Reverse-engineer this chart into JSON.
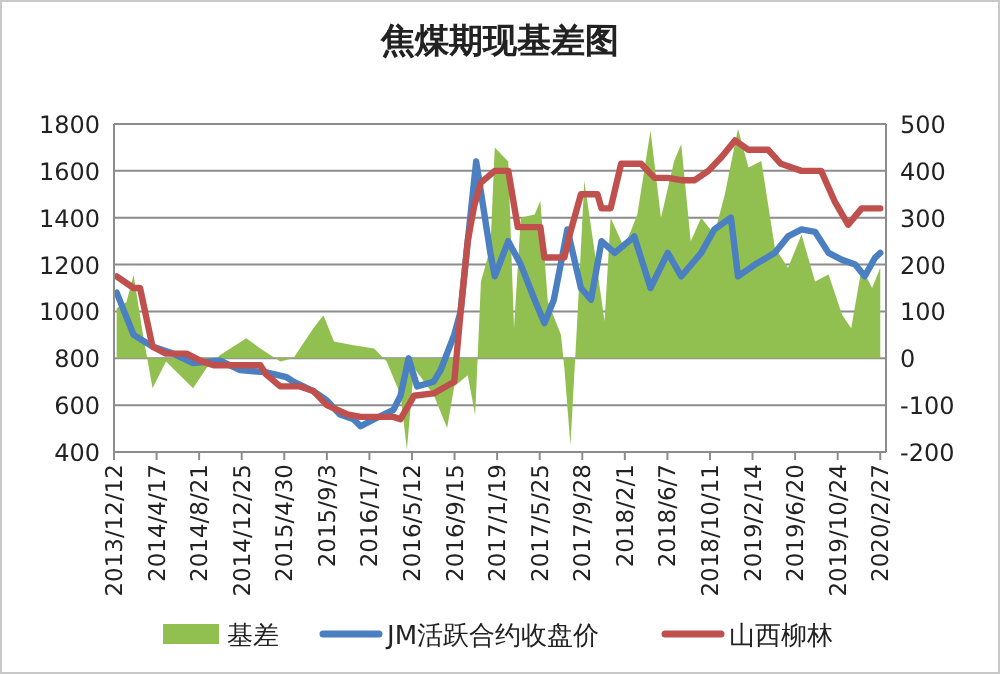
{
  "chart_data": {
    "type": "line",
    "title": "焦煤期现基差图",
    "legend": "bottom",
    "grid": "y",
    "xlim": [
      "2013-12-12",
      "2020-03-15"
    ],
    "xticks": [
      {
        "value": "2013-12-12",
        "label": "2013/12/12"
      },
      {
        "value": "2014-04-17",
        "label": "2014/4/17"
      },
      {
        "value": "2014-08-21",
        "label": "2014/8/21"
      },
      {
        "value": "2014-12-25",
        "label": "2014/12/25"
      },
      {
        "value": "2015-04-30",
        "label": "2015/4/30"
      },
      {
        "value": "2015-09-03",
        "label": "2015/9/3"
      },
      {
        "value": "2016-01-07",
        "label": "2016/1/7"
      },
      {
        "value": "2016-05-12",
        "label": "2016/5/12"
      },
      {
        "value": "2016-09-15",
        "label": "2016/9/15"
      },
      {
        "value": "2017-01-19",
        "label": "2017/1/19"
      },
      {
        "value": "2017-05-25",
        "label": "2017/5/25"
      },
      {
        "value": "2017-09-28",
        "label": "2017/9/28"
      },
      {
        "value": "2018-02-01",
        "label": "2018/2/1"
      },
      {
        "value": "2018-06-07",
        "label": "2018/6/7"
      },
      {
        "value": "2018-10-11",
        "label": "2018/10/11"
      },
      {
        "value": "2019-02-14",
        "label": "2019/2/14"
      },
      {
        "value": "2019-06-20",
        "label": "2019/6/20"
      },
      {
        "value": "2019-10-24",
        "label": "2019/10/24"
      },
      {
        "value": "2020-02-27",
        "label": "2020/2/27"
      }
    ],
    "ylim": [
      400,
      1800
    ],
    "yticks": [
      400,
      600,
      800,
      1000,
      1200,
      1400,
      1600,
      1800
    ],
    "y2lim": [
      -200,
      500
    ],
    "y2ticks": [
      -200,
      -100,
      0,
      100,
      200,
      300,
      400,
      500
    ],
    "series": [
      {
        "name": "基差",
        "type": "area",
        "axis": "y2",
        "color": "#92c050",
        "x": [
          "2013-12-20",
          "2014-01-18",
          "2014-02-08",
          "2014-03-08",
          "2014-04-05",
          "2014-05-15",
          "2014-08-03",
          "2014-09-12",
          "2014-10-22",
          "2015-01-08",
          "2015-02-18",
          "2015-04-18",
          "2015-05-27",
          "2015-07-25",
          "2015-08-24",
          "2015-09-24",
          "2015-11-21",
          "2016-01-21",
          "2016-02-27",
          "2016-04-08",
          "2016-04-27",
          "2016-05-18",
          "2016-07-15",
          "2016-08-24",
          "2016-09-14",
          "2016-10-24",
          "2016-11-15",
          "2016-12-02",
          "2016-12-30",
          "2017-01-12",
          "2017-02-21",
          "2017-03-10",
          "2017-03-30",
          "2017-05-10",
          "2017-05-27",
          "2017-06-18",
          "2017-07-27",
          "2017-08-06",
          "2017-08-24",
          "2017-09-14",
          "2017-10-04",
          "2017-11-02",
          "2017-12-03",
          "2017-12-21",
          "2018-01-30",
          "2018-03-10",
          "2018-04-18",
          "2018-05-19",
          "2018-06-27",
          "2018-07-18",
          "2018-08-15",
          "2018-09-15",
          "2018-10-24",
          "2018-11-24",
          "2019-01-02",
          "2019-02-02",
          "2019-03-12",
          "2019-04-21",
          "2019-05-30",
          "2019-07-09",
          "2019-08-18",
          "2019-09-27",
          "2019-11-06",
          "2019-12-03",
          "2020-01-03",
          "2020-02-03",
          "2020-02-27"
        ],
        "values": [
          107,
          120,
          178,
          50,
          -64,
          -7,
          -64,
          -21,
          7,
          43,
          21,
          -7,
          0,
          64,
          92,
          36,
          28,
          21,
          -7,
          -78,
          -195,
          -21,
          -78,
          -149,
          -60,
          -36,
          -121,
          164,
          235,
          450,
          420,
          64,
          300,
          307,
          336,
          121,
          50,
          -21,
          -186,
          93,
          379,
          236,
          79,
          300,
          236,
          307,
          486,
          300,
          421,
          457,
          250,
          300,
          264,
          350,
          490,
          407,
          421,
          236,
          193,
          264,
          164,
          179,
          93,
          64,
          193,
          150,
          193
        ]
      },
      {
        "name": "JM活跃合约收盘价",
        "type": "line",
        "axis": "y",
        "color": "#4a7fc1",
        "x": [
          "2013-12-20",
          "2014-02-08",
          "2014-04-05",
          "2014-06-05",
          "2014-08-03",
          "2014-10-22",
          "2014-12-20",
          "2015-03-08",
          "2015-05-06",
          "2015-05-27",
          "2015-07-25",
          "2015-09-03",
          "2015-10-12",
          "2015-11-21",
          "2015-12-12",
          "2016-01-21",
          "2016-03-18",
          "2016-04-08",
          "2016-05-02",
          "2016-05-27",
          "2016-07-15",
          "2016-08-05",
          "2016-09-14",
          "2016-10-03",
          "2016-10-24",
          "2016-11-18",
          "2016-12-30",
          "2017-01-12",
          "2017-02-21",
          "2017-03-30",
          "2017-05-10",
          "2017-06-08",
          "2017-07-06",
          "2017-08-15",
          "2017-09-24",
          "2017-10-24",
          "2017-11-24",
          "2018-01-02",
          "2018-03-01",
          "2018-04-18",
          "2018-06-08",
          "2018-07-18",
          "2018-09-15",
          "2018-10-24",
          "2018-12-12",
          "2019-01-02",
          "2019-02-21",
          "2019-04-21",
          "2019-05-30",
          "2019-07-09",
          "2019-08-18",
          "2019-09-27",
          "2019-11-06",
          "2019-12-15",
          "2020-01-12",
          "2020-02-12",
          "2020-02-27"
        ],
        "values": [
          1080,
          900,
          850,
          820,
          780,
          790,
          750,
          740,
          720,
          700,
          660,
          620,
          560,
          540,
          510,
          540,
          580,
          640,
          800,
          680,
          700,
          750,
          900,
          1000,
          1300,
          1640,
          1250,
          1150,
          1300,
          1200,
          1050,
          950,
          1050,
          1350,
          1100,
          1050,
          1300,
          1250,
          1320,
          1100,
          1250,
          1150,
          1250,
          1350,
          1400,
          1150,
          1200,
          1250,
          1320,
          1350,
          1340,
          1250,
          1220,
          1200,
          1150,
          1230,
          1250
        ]
      },
      {
        "name": "山西柳林",
        "type": "line",
        "axis": "y",
        "color": "#c0504d",
        "x": [
          "2013-12-20",
          "2014-02-08",
          "2014-02-27",
          "2014-04-05",
          "2014-05-15",
          "2014-07-15",
          "2014-08-24",
          "2014-10-03",
          "2015-02-18",
          "2015-03-08",
          "2015-04-18",
          "2015-06-15",
          "2015-07-25",
          "2015-09-03",
          "2015-11-03",
          "2015-12-12",
          "2016-03-18",
          "2016-04-08",
          "2016-05-18",
          "2016-07-15",
          "2016-09-14",
          "2016-10-03",
          "2016-10-24",
          "2016-11-12",
          "2016-12-02",
          "2017-01-12",
          "2017-02-21",
          "2017-03-21",
          "2017-05-27",
          "2017-06-08",
          "2017-08-06",
          "2017-08-24",
          "2017-09-24",
          "2017-11-12",
          "2017-11-24",
          "2017-12-21",
          "2018-01-21",
          "2018-03-21",
          "2018-04-30",
          "2018-06-08",
          "2018-07-18",
          "2018-08-27",
          "2018-10-06",
          "2018-11-15",
          "2018-12-24",
          "2019-02-02",
          "2019-04-01",
          "2019-05-09",
          "2019-07-09",
          "2019-09-05",
          "2019-10-15",
          "2019-11-24",
          "2020-01-03",
          "2020-02-27"
        ],
        "values": [
          1150,
          1100,
          1100,
          850,
          820,
          820,
          790,
          770,
          770,
          730,
          680,
          680,
          660,
          600,
          560,
          550,
          550,
          540,
          640,
          650,
          700,
          1000,
          1300,
          1450,
          1550,
          1600,
          1600,
          1360,
          1360,
          1230,
          1230,
          1340,
          1500,
          1500,
          1440,
          1440,
          1630,
          1630,
          1570,
          1570,
          1560,
          1560,
          1600,
          1660,
          1730,
          1690,
          1690,
          1630,
          1600,
          1600,
          1470,
          1370,
          1440,
          1440
        ]
      }
    ]
  }
}
